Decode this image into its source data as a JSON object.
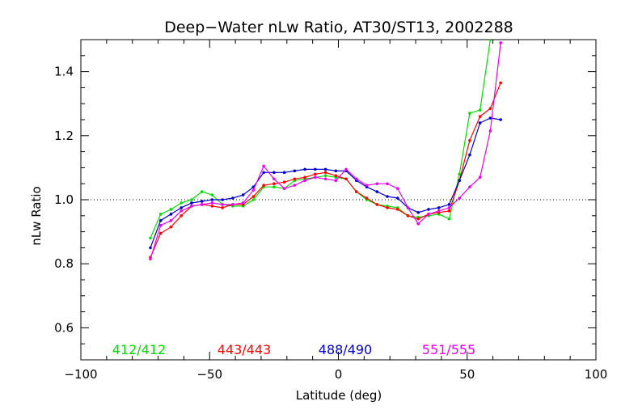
{
  "chart_data": {
    "type": "line",
    "title": "Deep−Water nLw Ratio, AT30/ST13, 2002288",
    "xlabel": "Latitude (deg)",
    "ylabel": "nLw Ratio",
    "xlim": [
      -100,
      100
    ],
    "ylim": [
      0.5,
      1.5
    ],
    "x_ticks": [
      -100,
      -50,
      0,
      50,
      100
    ],
    "x_tick_labels": [
      "−100",
      "−50",
      "0",
      "50",
      "100"
    ],
    "y_ticks": [
      0.6,
      0.8,
      1.0,
      1.2,
      1.4
    ],
    "y_tick_labels": [
      "0.6",
      "0.8",
      "1.0",
      "1.2",
      "1.4"
    ],
    "reference_line": 1.0,
    "grid": false,
    "legend_position": "bottom",
    "series": [
      {
        "name": "412/412",
        "color": "#00dd00",
        "x": [
          -73,
          -69,
          -65,
          -61,
          -57,
          -53,
          -49,
          -45,
          -41,
          -37,
          -33,
          -29,
          -25,
          -21,
          -17,
          -13,
          -9,
          -5,
          -1,
          3,
          7,
          11,
          15,
          19,
          23,
          27,
          31,
          35,
          39,
          43,
          47,
          51,
          55,
          59
        ],
        "y": [
          0.88,
          0.955,
          0.97,
          0.99,
          1.0,
          1.025,
          1.015,
          0.985,
          0.98,
          0.98,
          1.0,
          1.04,
          1.04,
          1.035,
          1.06,
          1.065,
          1.07,
          1.075,
          1.07,
          1.065,
          1.025,
          1.0,
          0.985,
          0.98,
          0.975,
          0.95,
          0.945,
          0.95,
          0.955,
          0.94,
          1.08,
          1.27,
          1.28,
          1.5
        ]
      },
      {
        "name": "443/443",
        "color": "#ff0000",
        "x": [
          -73,
          -69,
          -65,
          -61,
          -57,
          -53,
          -49,
          -45,
          -41,
          -37,
          -33,
          -29,
          -25,
          -21,
          -17,
          -13,
          -9,
          -5,
          -1,
          3,
          7,
          11,
          15,
          19,
          23,
          27,
          31,
          35,
          39,
          43,
          47,
          51,
          55,
          59,
          63
        ],
        "y": [
          0.82,
          0.895,
          0.915,
          0.95,
          0.98,
          0.985,
          0.98,
          0.975,
          0.985,
          0.985,
          1.01,
          1.045,
          1.05,
          1.055,
          1.065,
          1.07,
          1.08,
          1.085,
          1.075,
          1.065,
          1.025,
          1.005,
          0.985,
          0.975,
          0.97,
          0.95,
          0.94,
          0.955,
          0.96,
          0.965,
          1.06,
          1.185,
          1.26,
          1.285,
          1.365
        ]
      },
      {
        "name": "488/490",
        "color": "#0000cc",
        "x": [
          -73,
          -69,
          -65,
          -61,
          -57,
          -53,
          -49,
          -45,
          -41,
          -37,
          -33,
          -29,
          -25,
          -21,
          -17,
          -13,
          -9,
          -5,
          -1,
          3,
          7,
          11,
          15,
          19,
          23,
          27,
          31,
          35,
          39,
          43,
          47,
          51,
          55,
          59,
          63
        ],
        "y": [
          0.85,
          0.935,
          0.955,
          0.975,
          0.99,
          0.995,
          1.0,
          1.0,
          1.005,
          1.015,
          1.04,
          1.085,
          1.085,
          1.085,
          1.09,
          1.095,
          1.095,
          1.095,
          1.09,
          1.09,
          1.06,
          1.04,
          1.025,
          1.01,
          1.005,
          0.975,
          0.96,
          0.97,
          0.975,
          0.985,
          1.06,
          1.14,
          1.24,
          1.255,
          1.25
        ]
      },
      {
        "name": "551/555",
        "color": "#ee00ee",
        "x": [
          -73,
          -69,
          -65,
          -61,
          -57,
          -53,
          -49,
          -45,
          -41,
          -37,
          -33,
          -29,
          -25,
          -21,
          -17,
          -13,
          -9,
          -5,
          -1,
          3,
          7,
          11,
          15,
          19,
          23,
          27,
          31,
          35,
          39,
          43,
          47,
          51,
          55,
          59,
          63
        ],
        "y": [
          0.815,
          0.92,
          0.935,
          0.965,
          0.98,
          0.985,
          0.99,
          0.985,
          0.985,
          0.99,
          1.03,
          1.105,
          1.065,
          1.035,
          1.045,
          1.06,
          1.07,
          1.065,
          1.06,
          1.095,
          1.065,
          1.045,
          1.05,
          1.05,
          1.035,
          0.975,
          0.925,
          0.955,
          0.965,
          0.975,
          1.005,
          1.04,
          1.07,
          1.215,
          1.49
        ]
      }
    ]
  }
}
